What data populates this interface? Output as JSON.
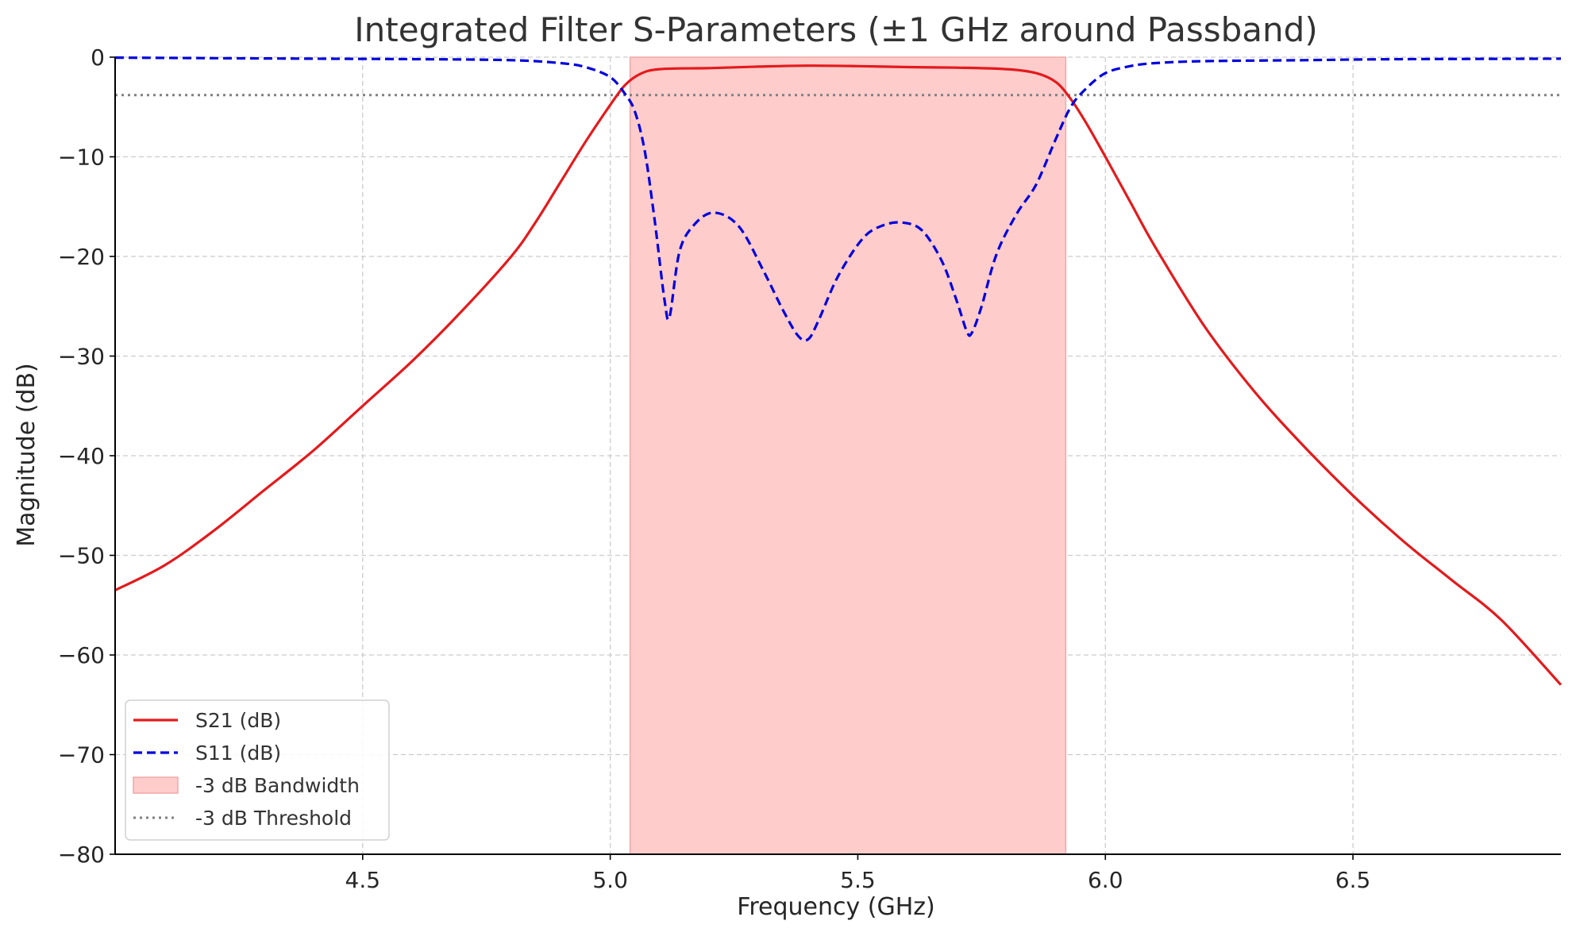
{
  "chart_data": {
    "type": "line",
    "title": "Integrated Filter S-Parameters (±1 GHz around Passband)",
    "xlabel": "Frequency (GHz)",
    "ylabel": "Magnitude (dB)",
    "xlim": [
      4.0,
      6.92
    ],
    "ylim": [
      -80,
      0
    ],
    "xticks": [
      4.5,
      5.0,
      5.5,
      6.0,
      6.5
    ],
    "xtick_labels": [
      "4.5",
      "5.0",
      "5.5",
      "6.0",
      "6.5"
    ],
    "yticks": [
      0,
      -10,
      -20,
      -30,
      -40,
      -50,
      -60,
      -70,
      -80
    ],
    "ytick_labels": [
      "0",
      "−10",
      "−20",
      "−30",
      "−40",
      "−50",
      "−60",
      "−70",
      "−80"
    ],
    "grid": true,
    "legend_position": "lower-left",
    "series": [
      {
        "name": "S21 (dB)",
        "color": "#e41a1c",
        "style": "solid",
        "x": [
          4.0,
          4.1,
          4.2,
          4.3,
          4.4,
          4.5,
          4.6,
          4.7,
          4.8,
          4.85,
          4.9,
          4.95,
          5.0,
          5.03,
          5.06,
          5.1,
          5.2,
          5.3,
          5.4,
          5.5,
          5.6,
          5.7,
          5.8,
          5.86,
          5.9,
          5.93,
          5.96,
          6.0,
          6.05,
          6.1,
          6.2,
          6.3,
          6.4,
          6.5,
          6.6,
          6.7,
          6.8,
          6.92
        ],
        "y": [
          -53.5,
          -51,
          -47.5,
          -43.5,
          -39.5,
          -35,
          -30.5,
          -25.5,
          -20,
          -16.5,
          -12.5,
          -8.5,
          -4.8,
          -2.8,
          -1.7,
          -1.2,
          -1.1,
          -0.95,
          -0.85,
          -0.9,
          -1.0,
          -1.05,
          -1.2,
          -1.6,
          -2.5,
          -4.2,
          -6.5,
          -10,
          -14.5,
          -19,
          -27,
          -33.5,
          -39,
          -44,
          -48.5,
          -52.5,
          -56.5,
          -63
        ]
      },
      {
        "name": "S11 (dB)",
        "color": "#0000dd",
        "style": "dashed",
        "x": [
          4.0,
          4.2,
          4.4,
          4.6,
          4.8,
          4.9,
          4.95,
          5.0,
          5.03,
          5.05,
          5.07,
          5.09,
          5.11,
          5.12,
          5.14,
          5.17,
          5.21,
          5.26,
          5.31,
          5.35,
          5.38,
          5.4,
          5.42,
          5.46,
          5.51,
          5.55,
          5.59,
          5.63,
          5.67,
          5.7,
          5.72,
          5.73,
          5.75,
          5.78,
          5.82,
          5.86,
          5.9,
          5.93,
          5.96,
          6.0,
          6.05,
          6.1,
          6.2,
          6.4,
          6.6,
          6.92
        ],
        "y": [
          -0.05,
          -0.1,
          -0.15,
          -0.2,
          -0.3,
          -0.6,
          -1.0,
          -2.0,
          -3.7,
          -5.5,
          -9.5,
          -16.5,
          -24.5,
          -26.0,
          -19.5,
          -16.8,
          -15.6,
          -17.0,
          -21.5,
          -25.5,
          -28.0,
          -28.3,
          -26.5,
          -22.0,
          -18.2,
          -16.9,
          -16.6,
          -17.4,
          -20.5,
          -24.5,
          -27.5,
          -27.7,
          -25.0,
          -19.8,
          -15.8,
          -12.8,
          -8.2,
          -5.0,
          -3.2,
          -1.6,
          -0.9,
          -0.6,
          -0.4,
          -0.3,
          -0.2,
          -0.15
        ]
      },
      {
        "name": "-3 dB Bandwidth",
        "color": "#ffcccc",
        "style": "band",
        "x_range": [
          5.04,
          5.92
        ]
      },
      {
        "name": "-3 dB Threshold",
        "color": "#808080",
        "style": "dotted",
        "y_value": -3.8
      }
    ]
  }
}
